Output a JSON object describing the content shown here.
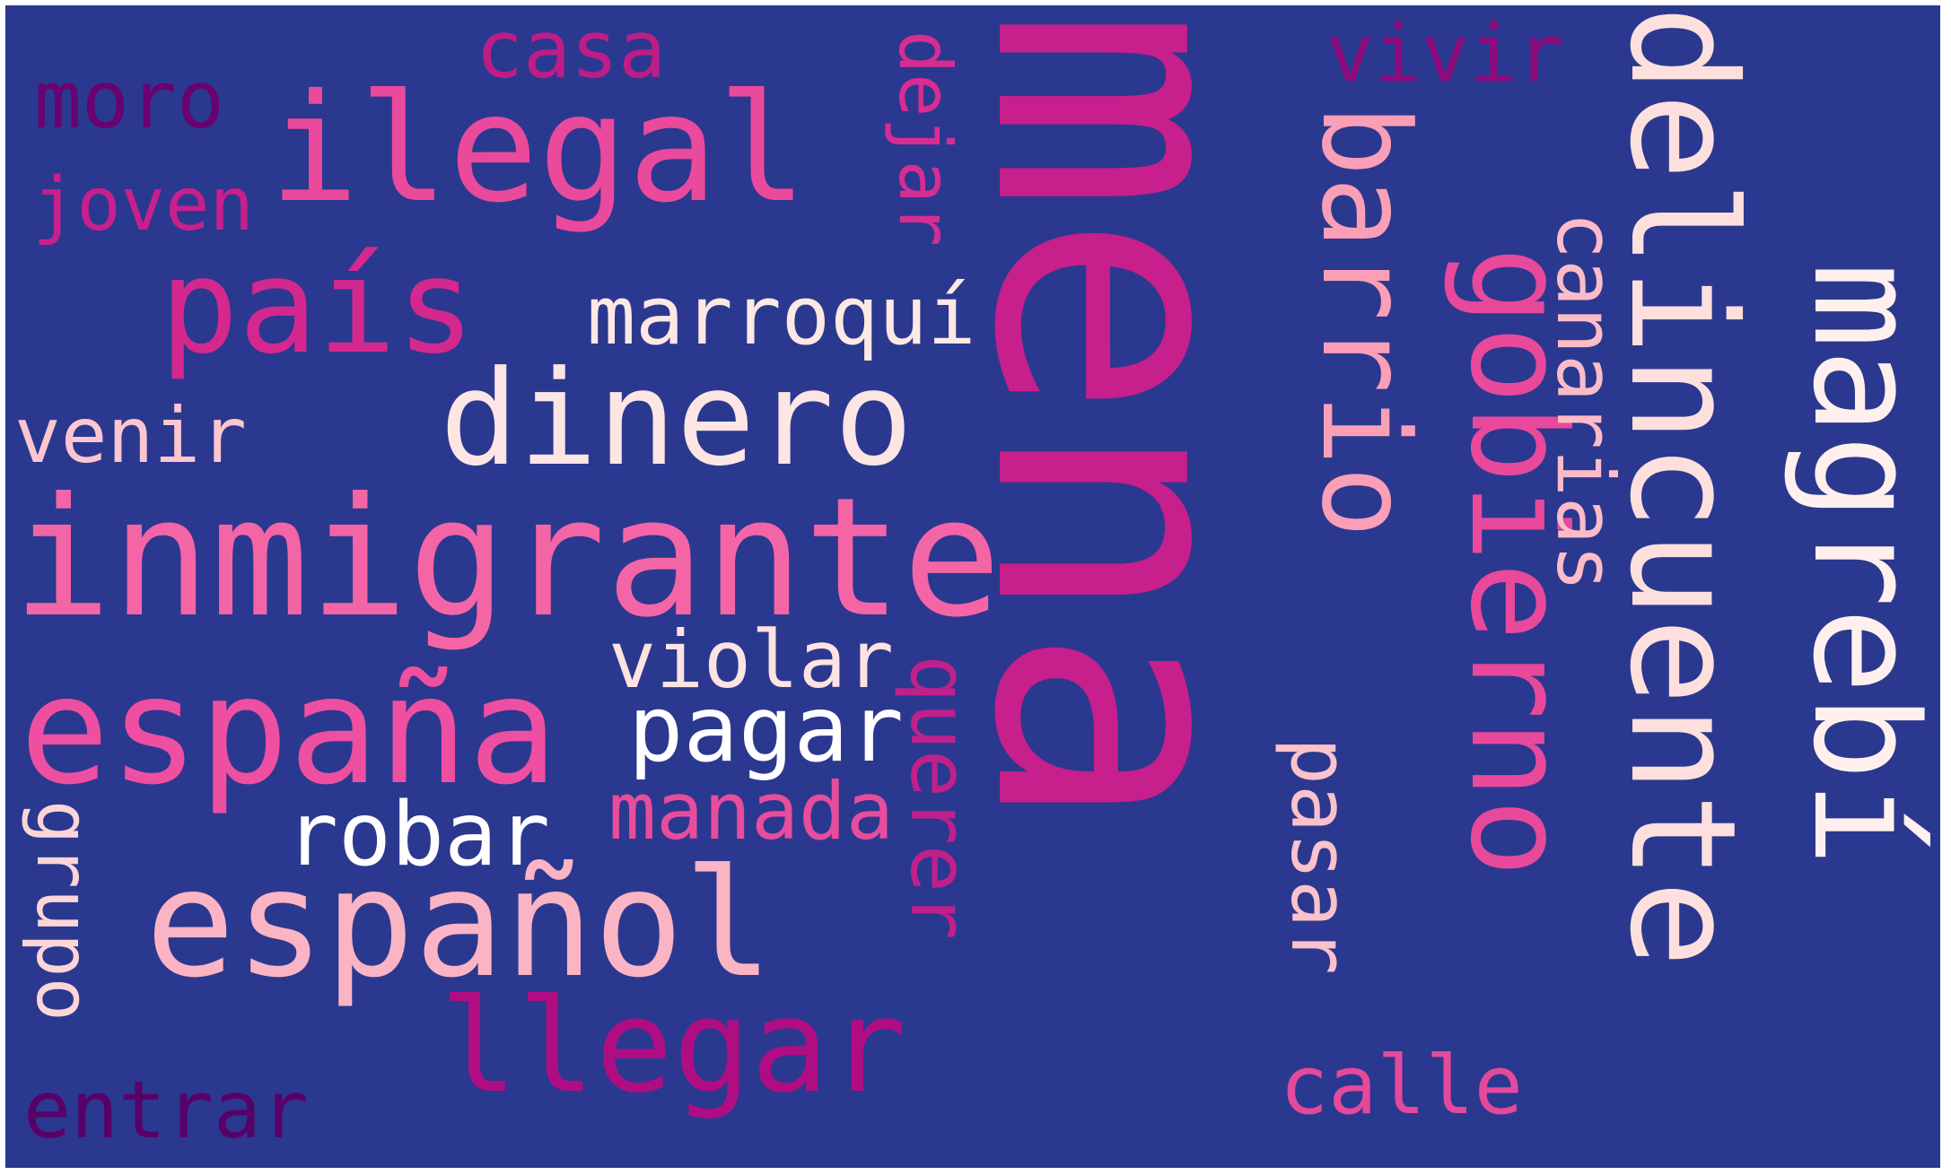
{
  "background": "#2b388f",
  "words": [
    {
      "text": "mena",
      "color": "#c71f8b"
    },
    {
      "text": "inmigrante",
      "color": "#f465a6"
    },
    {
      "text": "delincuente",
      "color": "#fde0dd"
    },
    {
      "text": "magrebí",
      "color": "#fff0ee"
    },
    {
      "text": "españa",
      "color": "#ef4fa0"
    },
    {
      "text": "ilegal",
      "color": "#ea4a9c"
    },
    {
      "text": "español",
      "color": "#fbb4c3"
    },
    {
      "text": "país",
      "color": "#d4288f"
    },
    {
      "text": "gobierno",
      "color": "#e8499b"
    },
    {
      "text": "dinero",
      "color": "#fde5e4"
    },
    {
      "text": "barrio",
      "color": "#fa9fb5"
    },
    {
      "text": "llegar",
      "color": "#b10d83"
    },
    {
      "text": "marroquí",
      "color": "#fde8e4"
    },
    {
      "text": "canarias",
      "color": "#fbbcc8"
    },
    {
      "text": "pagar",
      "color": "#ffffff"
    },
    {
      "text": "violar",
      "color": "#fde3e1"
    },
    {
      "text": "robar",
      "color": "#ffffff"
    },
    {
      "text": "manada",
      "color": "#e84c9c"
    },
    {
      "text": "querer",
      "color": "#c0208a"
    },
    {
      "text": "pasar",
      "color": "#fbc2cb"
    },
    {
      "text": "calle",
      "color": "#e5499b"
    },
    {
      "text": "venir",
      "color": "#fbc6cf"
    },
    {
      "text": "dejar",
      "color": "#d72d92"
    },
    {
      "text": "vivir",
      "color": "#8e0b7d"
    },
    {
      "text": "casa",
      "color": "#be1d87"
    },
    {
      "text": "moro",
      "color": "#6a0170"
    },
    {
      "text": "joven",
      "color": "#c81f8d"
    },
    {
      "text": "grupo",
      "color": "#fcd6d6"
    },
    {
      "text": "entrar",
      "color": "#590068"
    }
  ]
}
